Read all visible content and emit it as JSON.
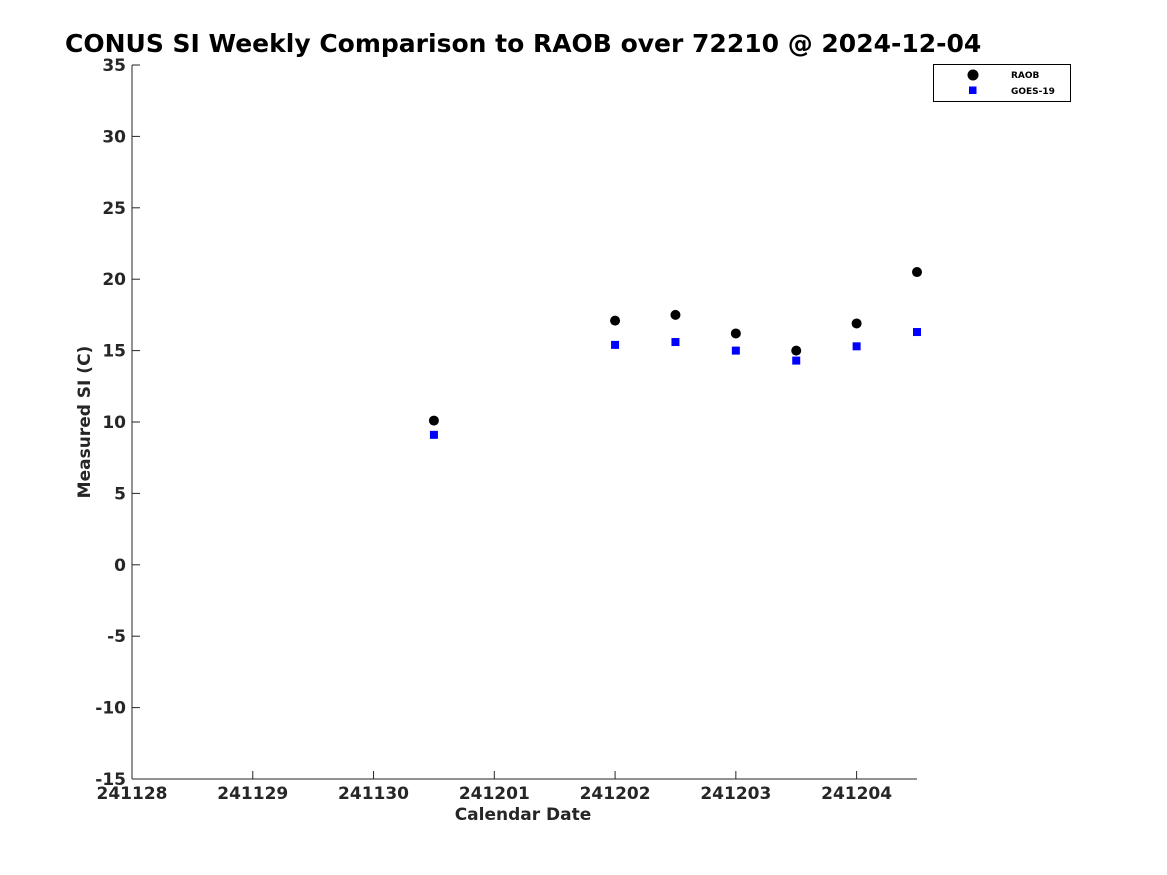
{
  "chart_data": {
    "type": "scatter",
    "title": "CONUS SI Weekly Comparison to RAOB over 72210 @ 2024-12-04",
    "xlabel": "Calendar Date",
    "ylabel": "Measured SI (C)",
    "xlim": [
      "2024-11-28",
      "2024-12-04T12:00"
    ],
    "ylim": [
      -15,
      35
    ],
    "x_ticks": [
      "241128",
      "241129",
      "241130",
      "241201",
      "241202",
      "241203",
      "241204"
    ],
    "y_ticks": [
      35,
      30,
      25,
      20,
      15,
      10,
      5,
      0,
      -5,
      -10,
      -15
    ],
    "grid": false,
    "legend_position": "top-right",
    "series": [
      {
        "name": "RAOB",
        "marker": "circle",
        "color": "#000000",
        "points": [
          {
            "x": "2024-11-30T12:00",
            "y": 10.1
          },
          {
            "x": "2024-12-02T00:00",
            "y": 17.1
          },
          {
            "x": "2024-12-02T12:00",
            "y": 17.5
          },
          {
            "x": "2024-12-03T00:00",
            "y": 16.2
          },
          {
            "x": "2024-12-03T12:00",
            "y": 15.0
          },
          {
            "x": "2024-12-04T00:00",
            "y": 16.9
          },
          {
            "x": "2024-12-04T12:00",
            "y": 20.5
          }
        ]
      },
      {
        "name": "GOES-19",
        "marker": "square",
        "color": "#0000ff",
        "points": [
          {
            "x": "2024-11-30T12:00",
            "y": 9.1
          },
          {
            "x": "2024-12-02T00:00",
            "y": 15.4
          },
          {
            "x": "2024-12-02T12:00",
            "y": 15.6
          },
          {
            "x": "2024-12-03T00:00",
            "y": 15.0
          },
          {
            "x": "2024-12-03T12:00",
            "y": 14.3
          },
          {
            "x": "2024-12-04T00:00",
            "y": 15.3
          },
          {
            "x": "2024-12-04T12:00",
            "y": 16.3
          }
        ]
      }
    ]
  }
}
